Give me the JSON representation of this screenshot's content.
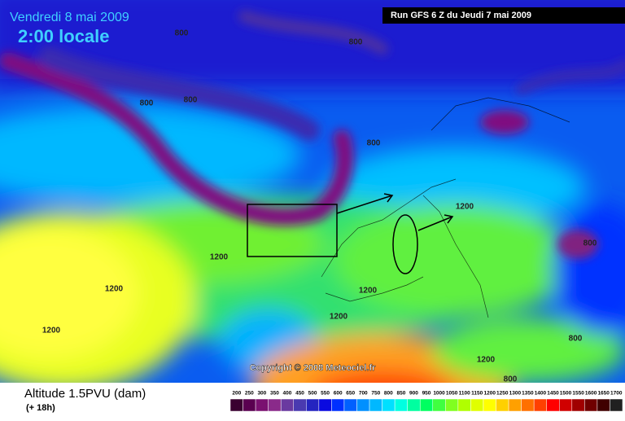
{
  "header": {
    "date": "Vendredi 8 mai 2009",
    "time": "2:00 locale",
    "run": "Run GFS 6 Z du Jeudi 7 mai 2009"
  },
  "map": {
    "contour_labels": [
      "800",
      "800",
      "800",
      "800",
      "800",
      "1200",
      "800",
      "1200",
      "1200",
      "1200",
      "1200",
      "1200",
      "800",
      "1200",
      "800"
    ],
    "copyright": "Copyright © 2008 Meteociel.fr"
  },
  "footer": {
    "title": "Altitude 1.5PVU (dam)",
    "lead": "(+ 18h)"
  },
  "scale": {
    "values": [
      200,
      250,
      300,
      350,
      400,
      450,
      500,
      550,
      600,
      650,
      700,
      750,
      800,
      850,
      900,
      950,
      1000,
      1050,
      1100,
      1150,
      1200,
      1250,
      1300,
      1350,
      1400,
      1450,
      1500,
      1550,
      1600,
      1650,
      1700
    ],
    "colors": [
      "#3a0030",
      "#5a0050",
      "#7a1070",
      "#8a2a8a",
      "#6a3aa0",
      "#4a3ab0",
      "#2424c0",
      "#0a0ae0",
      "#0030ff",
      "#0060ff",
      "#0090ff",
      "#00b8ff",
      "#00e0ff",
      "#00ffe0",
      "#00ffa0",
      "#00ff60",
      "#40ff40",
      "#80ff20",
      "#b0ff00",
      "#e0ff00",
      "#ffff00",
      "#ffd000",
      "#ffa000",
      "#ff7000",
      "#ff4000",
      "#ff0000",
      "#d00000",
      "#a00000",
      "#700000",
      "#400000",
      "#202020"
    ]
  }
}
